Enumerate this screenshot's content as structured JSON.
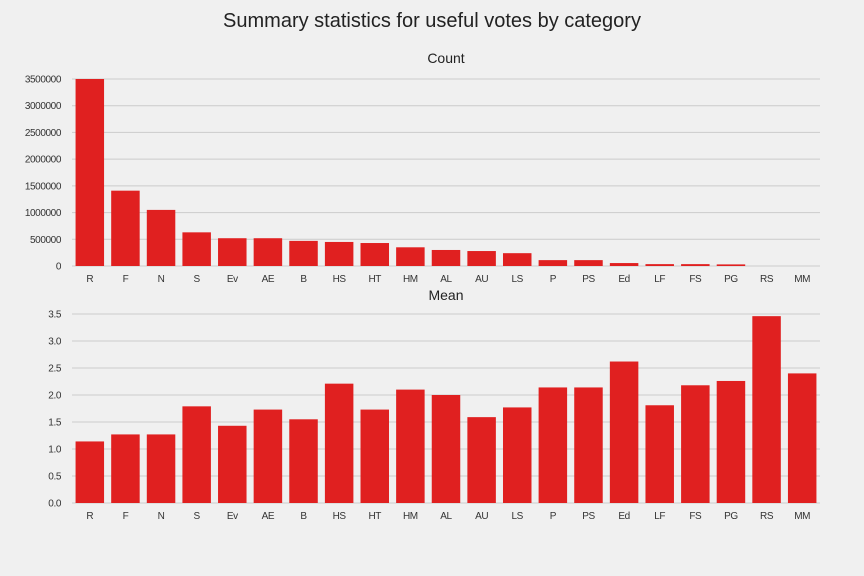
{
  "title": "Summary statistics for useful votes by category",
  "colors": {
    "bar": "#e02020",
    "background": "#f0f0f0",
    "grid": "#cbcbcb"
  },
  "chart_data": [
    {
      "type": "bar",
      "title": "Count",
      "categories": [
        "R",
        "F",
        "N",
        "S",
        "Ev",
        "AE",
        "B",
        "HS",
        "HT",
        "HM",
        "AL",
        "AU",
        "LS",
        "P",
        "PS",
        "Ed",
        "LF",
        "FS",
        "PG",
        "RS",
        "MM"
      ],
      "values": [
        3500000,
        1410000,
        1050000,
        630000,
        520000,
        520000,
        470000,
        450000,
        430000,
        350000,
        300000,
        280000,
        240000,
        110000,
        110000,
        55000,
        35000,
        35000,
        30000,
        0,
        0
      ],
      "yticks": [
        "0",
        "500000",
        "1000000",
        "1500000",
        "2000000",
        "2500000",
        "3000000",
        "3500000"
      ],
      "ylim": [
        0,
        3500000
      ],
      "grid": true
    },
    {
      "type": "bar",
      "title": "Mean",
      "categories": [
        "R",
        "F",
        "N",
        "S",
        "Ev",
        "AE",
        "B",
        "HS",
        "HT",
        "HM",
        "AL",
        "AU",
        "LS",
        "P",
        "PS",
        "Ed",
        "LF",
        "FS",
        "PG",
        "RS",
        "MM"
      ],
      "values": [
        1.14,
        1.27,
        1.27,
        1.79,
        1.43,
        1.73,
        1.55,
        2.21,
        1.73,
        2.1,
        2.0,
        1.59,
        1.77,
        2.14,
        2.14,
        2.62,
        1.81,
        2.18,
        2.26,
        3.46,
        2.4
      ],
      "yticks": [
        "0.0",
        "0.5",
        "1.0",
        "1.5",
        "2.0",
        "2.5",
        "3.0",
        "3.5"
      ],
      "ylim": [
        0,
        3.5
      ],
      "grid": true
    }
  ]
}
